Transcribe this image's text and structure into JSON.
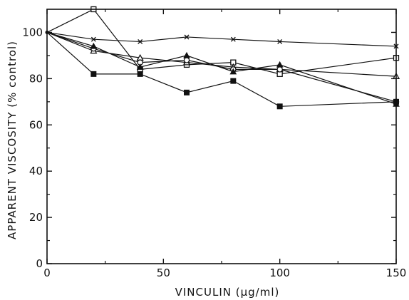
{
  "chart_data": {
    "type": "line",
    "title": "",
    "xlabel": "VINCULIN (μg/ml)",
    "ylabel": "APPARENT VISCOSITY (% control)",
    "xlim": [
      0,
      150
    ],
    "ylim": [
      0,
      110
    ],
    "xticks": [
      0,
      50,
      100,
      150
    ],
    "yticks": [
      0,
      20,
      40,
      60,
      80,
      100
    ],
    "x_tick_labels": [
      "0",
      "50",
      "100",
      "150"
    ],
    "y_tick_labels": [
      "0",
      "20",
      "40",
      "60",
      "80",
      "100"
    ],
    "grid": false,
    "legend": "none",
    "series": [
      {
        "marker": "x-cross",
        "x": [
          0,
          20,
          40,
          60,
          80,
          100,
          150
        ],
        "y": [
          100,
          97,
          96,
          98,
          97,
          96,
          94
        ]
      },
      {
        "marker": "open-square",
        "x": [
          0,
          20,
          40,
          60,
          80,
          100,
          150
        ],
        "y": [
          100,
          110,
          84,
          86,
          87,
          82,
          89
        ]
      },
      {
        "marker": "open-triangle",
        "x": [
          0,
          20,
          40,
          60,
          80,
          100,
          150
        ],
        "y": [
          100,
          92,
          89,
          87,
          85,
          84,
          81
        ]
      },
      {
        "marker": "open-circle",
        "x": [
          0,
          20,
          40,
          60,
          80,
          100,
          150
        ],
        "y": [
          100,
          93,
          87,
          88,
          84,
          84,
          70
        ]
      },
      {
        "marker": "filled-triangle",
        "x": [
          0,
          20,
          40,
          60,
          80,
          100,
          150
        ],
        "y": [
          100,
          94,
          85,
          90,
          83,
          86,
          69
        ]
      },
      {
        "marker": "filled-square",
        "x": [
          0,
          20,
          40,
          60,
          80,
          100,
          150
        ],
        "y": [
          100,
          82,
          82,
          74,
          79,
          68,
          70
        ]
      }
    ]
  }
}
